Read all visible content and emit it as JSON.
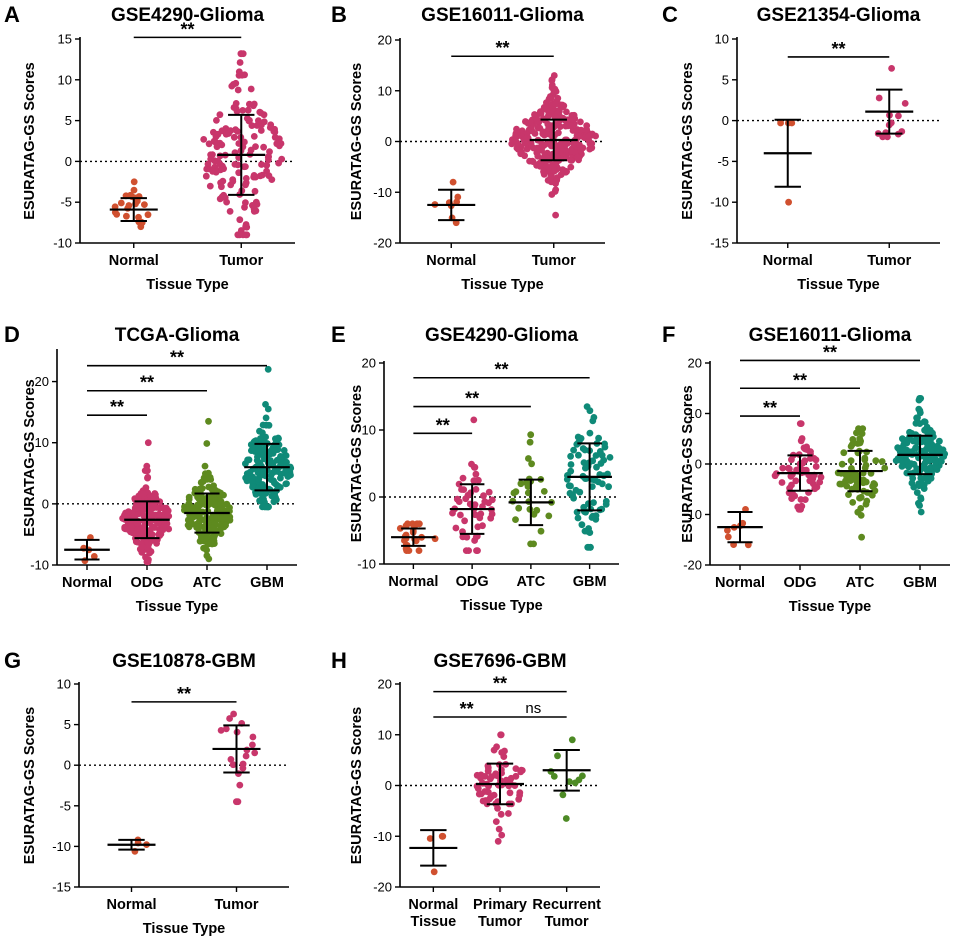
{
  "figure": {
    "y_axis_label": "ESURATAG-GS Scores",
    "x_axis_label": "Tissue Type"
  },
  "colors": {
    "normal": "#d0502f",
    "tumor": "#c8366b",
    "odg": "#c8366b",
    "atc": "#5e8a1f",
    "gbm": "#0f8a78",
    "recurrent": "#4d8a25",
    "axis": "#000000"
  },
  "chart_data": [
    {
      "id": "A",
      "letter": "A",
      "type": "scatter",
      "title": "GSE4290-Glioma",
      "ylabel": "ESURATAG-GS Scores",
      "xlabel": "Tissue Type",
      "ylim": [
        -10,
        15
      ],
      "yticks": [
        -10,
        -5,
        0,
        5,
        10,
        15
      ],
      "categories": [
        {
          "label": "Normal",
          "color": "normal",
          "n": 23,
          "mean": -5.9,
          "sd": 1.4,
          "min": -8.0,
          "max": -2.5
        },
        {
          "label": "Tumor",
          "color": "tumor",
          "n": 157,
          "mean": 0.8,
          "sd": 4.9,
          "min": -9.0,
          "max": 13.2
        }
      ],
      "comparisons": [
        {
          "from": 0,
          "to": 1,
          "label": "**",
          "y": 15.2
        }
      ]
    },
    {
      "id": "B",
      "letter": "B",
      "type": "scatter",
      "title": "GSE16011-Glioma",
      "ylabel": "ESURATAG-GS Scores",
      "xlabel": "Tissue Type",
      "ylim": [
        -20,
        20
      ],
      "yticks": [
        -20,
        -10,
        0,
        10,
        20
      ],
      "categories": [
        {
          "label": "Normal",
          "color": "normal",
          "n": 8,
          "mean": -12.5,
          "sd": 3.0,
          "min": -16.0,
          "max": -8.0
        },
        {
          "label": "Tumor",
          "color": "tumor",
          "n": 276,
          "mean": 0.3,
          "sd": 4.0,
          "min": -14.5,
          "max": 13.0
        }
      ],
      "comparisons": [
        {
          "from": 0,
          "to": 1,
          "label": "**",
          "y": 16.8
        }
      ]
    },
    {
      "id": "C",
      "letter": "C",
      "type": "scatter",
      "title": "GSE21354-Glioma",
      "ylabel": "ESURATAG-GS Scores",
      "xlabel": "Tissue Type",
      "ylim": [
        -15,
        10
      ],
      "yticks": [
        -15,
        -10,
        -5,
        0,
        5,
        10
      ],
      "categories": [
        {
          "label": "Normal",
          "color": "normal",
          "n": 4,
          "mean": -4.0,
          "sd": 4.1,
          "min": -10.0,
          "max": -0.3
        },
        {
          "label": "Tumor",
          "color": "tumor",
          "n": 13,
          "mean": 1.1,
          "sd": 2.7,
          "min": -2.0,
          "max": 6.4
        }
      ],
      "comparisons": [
        {
          "from": 0,
          "to": 1,
          "label": "**",
          "y": 7.8
        }
      ]
    },
    {
      "id": "D",
      "letter": "D",
      "type": "scatter",
      "title": "TCGA-Glioma",
      "ylabel": "ESURATAG-GS Scores",
      "xlabel": "Tissue Type",
      "ylim": [
        -10,
        25
      ],
      "yticks": [
        -10,
        0,
        10,
        20
      ],
      "categories": [
        {
          "label": "Normal",
          "color": "normal",
          "n": 5,
          "mean": -7.5,
          "sd": 1.6,
          "min": -9.3,
          "max": -5.5
        },
        {
          "label": "ODG",
          "color": "odg",
          "n": 190,
          "mean": -2.6,
          "sd": 3.0,
          "min": -9.5,
          "max": 10.0
        },
        {
          "label": "ATC",
          "color": "atc",
          "n": 190,
          "mean": -1.5,
          "sd": 3.2,
          "min": -9.0,
          "max": 13.5
        },
        {
          "label": "GBM",
          "color": "gbm",
          "n": 160,
          "mean": 6.0,
          "sd": 3.8,
          "min": -0.5,
          "max": 22.0
        }
      ],
      "comparisons": [
        {
          "from": 0,
          "to": 1,
          "label": "**",
          "y": 14.5
        },
        {
          "from": 0,
          "to": 2,
          "label": "**",
          "y": 18.5
        },
        {
          "from": 0,
          "to": 3,
          "label": "**",
          "y": 22.6
        }
      ]
    },
    {
      "id": "E",
      "letter": "E",
      "type": "scatter",
      "title": "GSE4290-Glioma",
      "ylabel": "ESURATAG-GS Scores",
      "xlabel": "Tissue Type",
      "ylim": [
        -10,
        20
      ],
      "yticks": [
        -10,
        0,
        10,
        20
      ],
      "categories": [
        {
          "label": "Normal",
          "color": "normal",
          "n": 23,
          "mean": -6.0,
          "sd": 1.3,
          "min": -8.0,
          "max": -4.0
        },
        {
          "label": "ODG",
          "color": "odg",
          "n": 50,
          "mean": -1.8,
          "sd": 3.7,
          "min": -8.0,
          "max": 11.5
        },
        {
          "label": "ATC",
          "color": "atc",
          "n": 26,
          "mean": -0.8,
          "sd": 3.4,
          "min": -7.0,
          "max": 9.3
        },
        {
          "label": "GBM",
          "color": "gbm",
          "n": 81,
          "mean": 3.0,
          "sd": 5.0,
          "min": -7.5,
          "max": 13.5
        }
      ],
      "comparisons": [
        {
          "from": 0,
          "to": 1,
          "label": "**",
          "y": 9.5
        },
        {
          "from": 0,
          "to": 2,
          "label": "**",
          "y": 13.5
        },
        {
          "from": 0,
          "to": 3,
          "label": "**",
          "y": 17.8
        }
      ]
    },
    {
      "id": "F",
      "letter": "F",
      "type": "scatter",
      "title": "GSE16011-Glioma",
      "ylabel": "ESURATAG-GS Scores",
      "xlabel": "Tissue Type",
      "ylim": [
        -20,
        20
      ],
      "yticks": [
        -20,
        -10,
        0,
        10,
        20
      ],
      "categories": [
        {
          "label": "Normal",
          "color": "normal",
          "n": 8,
          "mean": -12.5,
          "sd": 3.0,
          "min": -16.0,
          "max": -9.0
        },
        {
          "label": "ODG",
          "color": "odg",
          "n": 60,
          "mean": -1.8,
          "sd": 3.5,
          "min": -9.0,
          "max": 8.0
        },
        {
          "label": "ATC",
          "color": "atc",
          "n": 75,
          "mean": -1.4,
          "sd": 4.0,
          "min": -14.5,
          "max": 7.0
        },
        {
          "label": "GBM",
          "color": "gbm",
          "n": 160,
          "mean": 1.8,
          "sd": 3.8,
          "min": -9.5,
          "max": 13.0
        }
      ],
      "comparisons": [
        {
          "from": 0,
          "to": 1,
          "label": "**",
          "y": 9.5
        },
        {
          "from": 0,
          "to": 2,
          "label": "**",
          "y": 15.0
        },
        {
          "from": 0,
          "to": 3,
          "label": "**",
          "y": 20.5
        }
      ]
    },
    {
      "id": "G",
      "letter": "G",
      "type": "scatter",
      "title": "GSE10878-GBM",
      "ylabel": "ESURATAG-GS Scores",
      "xlabel": "Tissue Type",
      "ylim": [
        -15,
        10
      ],
      "yticks": [
        -15,
        -10,
        -5,
        0,
        5,
        10
      ],
      "categories": [
        {
          "label": "Normal",
          "color": "normal",
          "n": 4,
          "mean": -9.8,
          "sd": 0.6,
          "min": -10.6,
          "max": -9.2
        },
        {
          "label": "Tumor",
          "color": "tumor",
          "n": 19,
          "mean": 2.0,
          "sd": 2.9,
          "min": -4.5,
          "max": 6.3
        }
      ],
      "comparisons": [
        {
          "from": 0,
          "to": 1,
          "label": "**",
          "y": 7.8
        }
      ]
    },
    {
      "id": "H",
      "letter": "H",
      "type": "scatter",
      "title": "GSE7696-GBM",
      "ylabel": "ESURATAG-GS Scores",
      "xlabel": "",
      "ylim": [
        -20,
        20
      ],
      "yticks": [
        -20,
        -10,
        0,
        10,
        20
      ],
      "categories": [
        {
          "label": "Normal",
          "label2": "Tissue",
          "color": "normal",
          "n": 4,
          "mean": -12.3,
          "sd": 3.5,
          "min": -17.0,
          "max": -10.0
        },
        {
          "label": "Primary",
          "label2": "Tumor",
          "color": "tumor",
          "n": 70,
          "mean": 0.3,
          "sd": 4.0,
          "min": -11.0,
          "max": 10.0
        },
        {
          "label": "Recurrent",
          "label2": "Tumor",
          "color": "recurrent",
          "n": 10,
          "mean": 3.0,
          "sd": 4.0,
          "min": -6.5,
          "max": 9.0
        }
      ],
      "comparisons": [
        {
          "from": 0,
          "to": 1,
          "label": "**",
          "y": 13.5
        },
        {
          "from": 1,
          "to": 2,
          "label": "ns",
          "y": 13.5
        },
        {
          "from": 0,
          "to": 2,
          "label": "**",
          "y": 18.5
        }
      ]
    }
  ]
}
